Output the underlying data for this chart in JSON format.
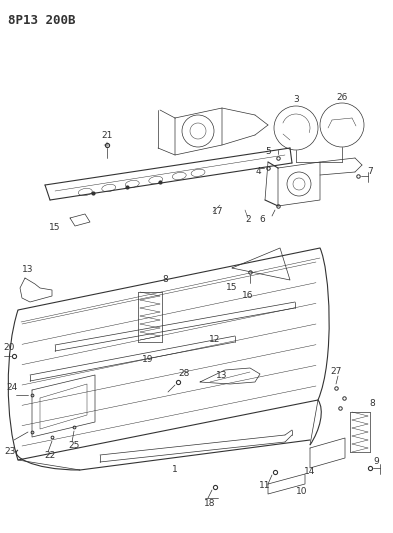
{
  "title": "8P13 200B",
  "bg_color": "#ffffff",
  "line_color": "#333333",
  "title_fontsize": 9,
  "label_fontsize": 6.5,
  "figsize": [
    3.93,
    5.33
  ],
  "dpi": 100
}
